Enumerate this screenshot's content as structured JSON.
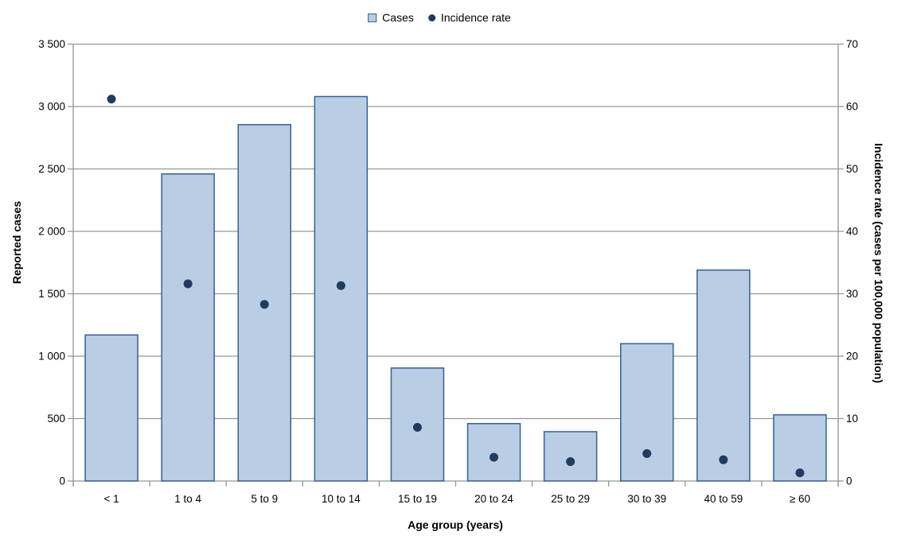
{
  "legend": {
    "cases_label": "Cases",
    "incidence_label": "Incidence rate"
  },
  "chart_data": {
    "type": "combo-bar-scatter",
    "title": "",
    "categories": [
      "< 1",
      "1 to 4",
      "5 to 9",
      "10 to 14",
      "15 to 19",
      "20 to 24",
      "25 to 29",
      "30 to 39",
      "40 to 59",
      "≥ 60"
    ],
    "series": [
      {
        "name": "Cases",
        "type": "bar",
        "axis": "left",
        "values": [
          1170,
          2460,
          2855,
          3080,
          905,
          460,
          395,
          1100,
          1690,
          530
        ]
      },
      {
        "name": "Incidence rate",
        "type": "scatter",
        "axis": "right",
        "values": [
          61.2,
          31.6,
          28.3,
          31.3,
          8.6,
          3.8,
          3.1,
          4.4,
          3.4,
          1.3
        ]
      }
    ],
    "xlabel": "Age group (years)",
    "ylabel_left": "Reported cases",
    "ylabel_right": "Incidence rate (cases per 100,000 population)",
    "ylim_left": [
      0,
      3500
    ],
    "ylim_right": [
      0,
      70
    ],
    "yticks_left": {
      "values": [
        0,
        500,
        1000,
        1500,
        2000,
        2500,
        3000,
        3500
      ],
      "labels": [
        "0",
        "500",
        "1 000",
        "1 500",
        "2 000",
        "2 500",
        "3 000",
        "3 500"
      ]
    },
    "yticks_right": {
      "values": [
        0,
        10,
        20,
        30,
        40,
        50,
        60,
        70
      ],
      "labels": [
        "0",
        "10",
        "20",
        "30",
        "40",
        "50",
        "60",
        "70"
      ]
    },
    "grid": "horizontal-only",
    "legend_position": "top-center",
    "colors": {
      "bar_fill": "#b9cde5",
      "bar_stroke": "#376092",
      "marker": "#1f3b5e",
      "gridline": "#969696",
      "axis_line": "#969696",
      "text": "#000000",
      "background": "#ffffff"
    }
  }
}
